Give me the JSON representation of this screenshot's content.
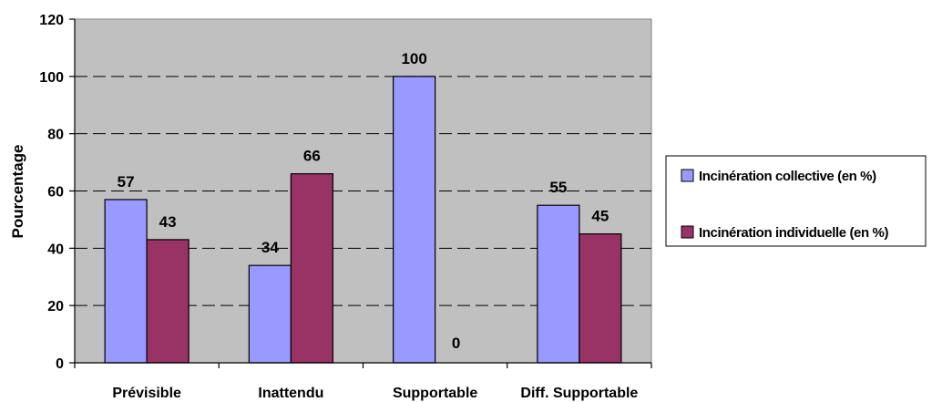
{
  "colors": {
    "plot_bg": "#c0c0c0",
    "collective": "#9999ff",
    "individual": "#993366",
    "grid": "#000000"
  },
  "chart_data": {
    "type": "bar",
    "categories": [
      "Prévisible",
      "Inattendu",
      "Supportable",
      "Diff. Supportable"
    ],
    "series": [
      {
        "name": "Incinération collective (en %)",
        "values": [
          57,
          34,
          100,
          55
        ]
      },
      {
        "name": "Incinération individuelle (en %)",
        "values": [
          43,
          66,
          0,
          45
        ]
      }
    ],
    "data_labels": [
      [
        "57",
        "34",
        "100",
        "55"
      ],
      [
        "43",
        "66",
        "0",
        "45"
      ]
    ],
    "title": "",
    "xlabel": "",
    "ylabel": "Pourcentage",
    "ylim": [
      0,
      120
    ],
    "yticks": [
      0,
      20,
      40,
      60,
      80,
      100,
      120
    ],
    "grid": true,
    "legend": "right"
  }
}
